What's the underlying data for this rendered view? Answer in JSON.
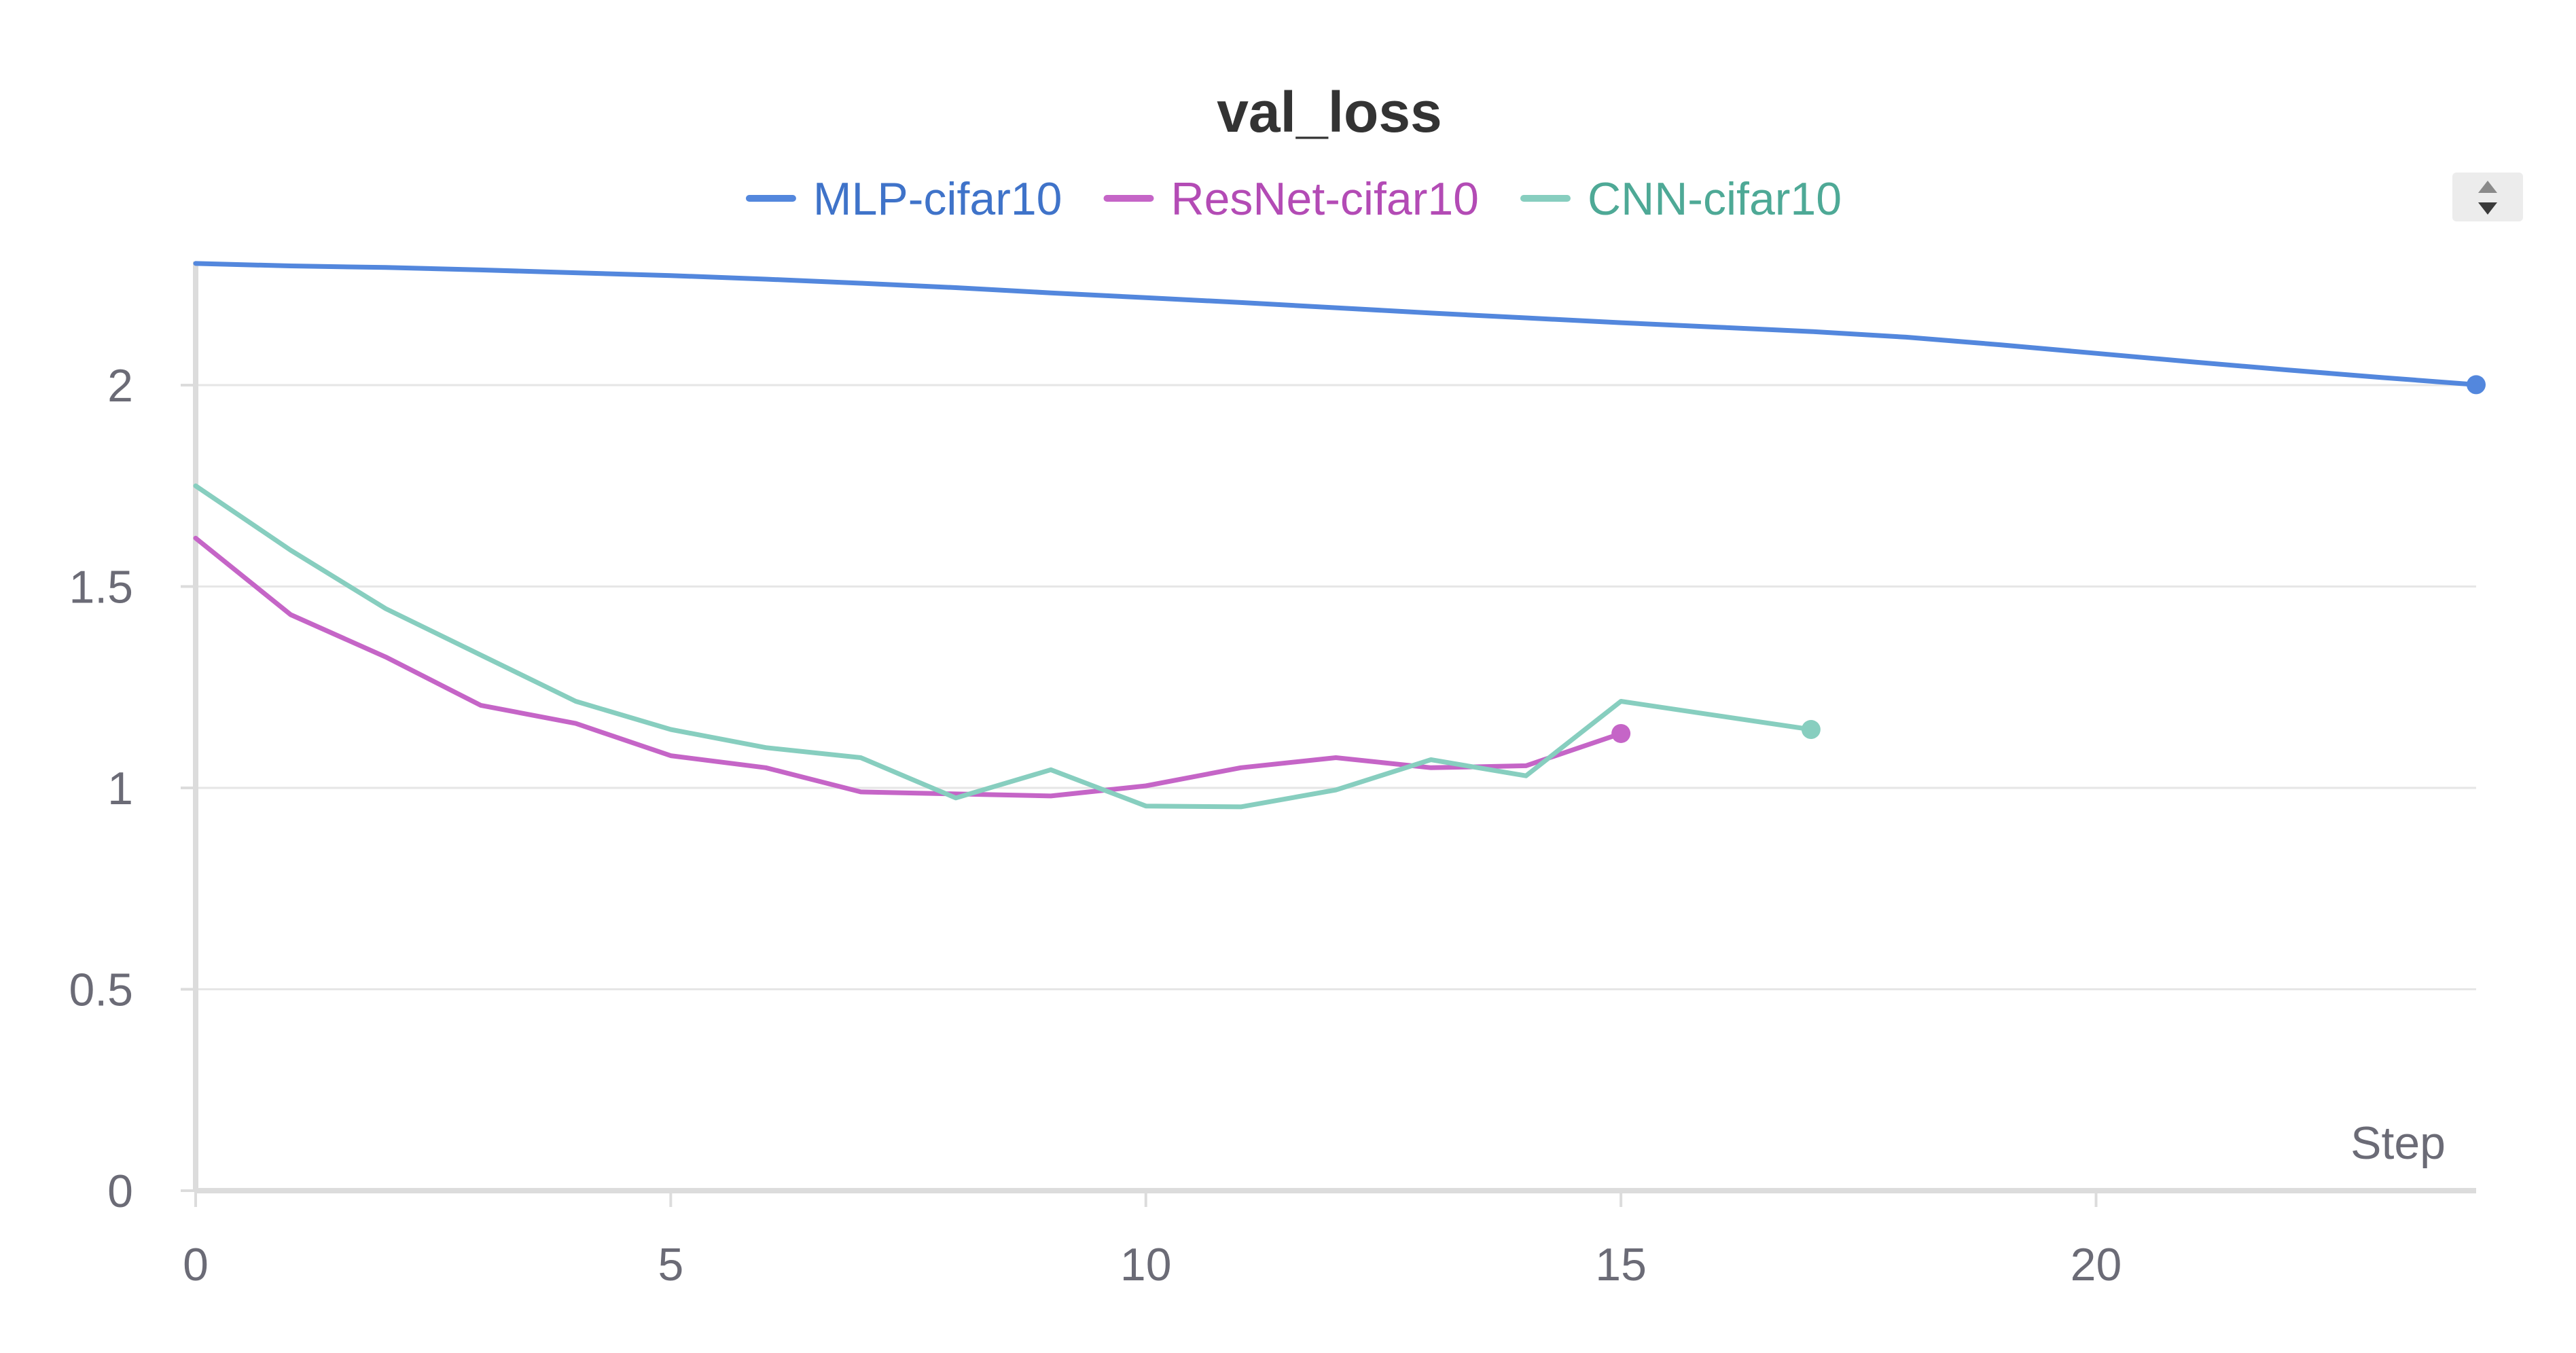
{
  "chart_data": {
    "type": "line",
    "title": "val_loss",
    "xlabel": "Step",
    "ylabel": "",
    "xlim": [
      0,
      24
    ],
    "ylim": [
      0,
      2.3
    ],
    "x_ticks": [
      0,
      5,
      10,
      15,
      20
    ],
    "y_ticks": [
      0,
      0.5,
      1,
      1.5,
      2
    ],
    "x_tick_labels": [
      "0",
      "5",
      "10",
      "15",
      "20"
    ],
    "y_tick_labels": [
      "0",
      "0.5",
      "1",
      "1.5",
      "2"
    ],
    "grid": true,
    "legend_position": "top-center",
    "series": [
      {
        "name": "MLP-cifar10",
        "color": "#5387dd",
        "x": [
          0,
          1,
          2,
          3,
          4,
          5,
          6,
          7,
          8,
          9,
          10,
          11,
          12,
          13,
          14,
          15,
          16,
          17,
          18,
          19,
          20,
          21,
          22,
          23,
          24
        ],
        "values": [
          2.302,
          2.296,
          2.292,
          2.286,
          2.279,
          2.272,
          2.263,
          2.253,
          2.242,
          2.229,
          2.217,
          2.205,
          2.192,
          2.179,
          2.167,
          2.155,
          2.144,
          2.133,
          2.119,
          2.1,
          2.079,
          2.058,
          2.038,
          2.019,
          2.001
        ]
      },
      {
        "name": "ResNet-cifar10",
        "color": "#c565c7",
        "x": [
          0,
          1,
          2,
          3,
          4,
          5,
          6,
          7,
          8,
          9,
          10,
          11,
          12,
          13,
          14,
          15
        ],
        "values": [
          1.62,
          1.43,
          1.325,
          1.205,
          1.16,
          1.08,
          1.05,
          0.99,
          0.985,
          0.98,
          1.005,
          1.05,
          1.075,
          1.05,
          1.055,
          1.135
        ]
      },
      {
        "name": "CNN-cifar10",
        "color": "#87cebf",
        "x": [
          0,
          1,
          2,
          3,
          4,
          5,
          6,
          7,
          8,
          9,
          10,
          11,
          12,
          13,
          14,
          15,
          16,
          17
        ],
        "values": [
          1.75,
          1.59,
          1.445,
          1.33,
          1.215,
          1.145,
          1.1,
          1.075,
          0.975,
          1.045,
          0.955,
          0.953,
          0.995,
          1.07,
          1.03,
          1.215,
          1.18,
          1.145
        ]
      }
    ]
  },
  "legend_text_colors": {
    "MLP-cifar10": "#3f73c9",
    "ResNet-cifar10": "#b34bb5",
    "CNN-cifar10": "#4ea996"
  },
  "controls": {
    "legend_scroll_icon": "up-down-arrows-icon"
  }
}
